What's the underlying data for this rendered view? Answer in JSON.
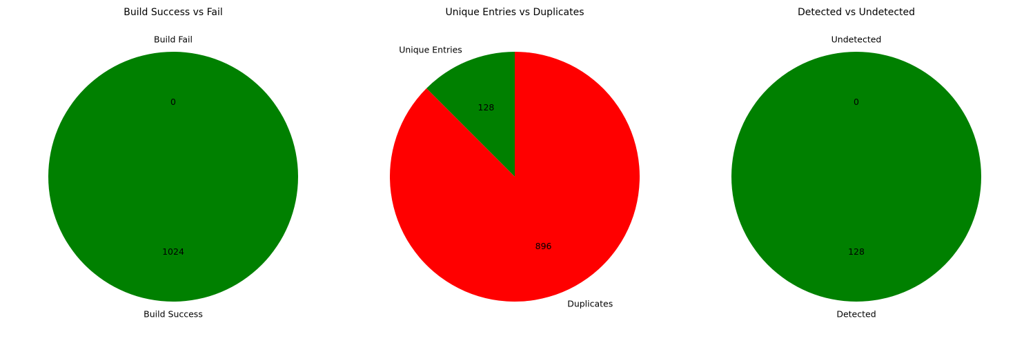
{
  "chart_data": [
    {
      "type": "pie",
      "title": "Build Success vs Fail",
      "slices": [
        {
          "label": "Build Success",
          "value": 1024,
          "color": "#008000"
        },
        {
          "label": "Build Fail",
          "value": 0,
          "color": "#ff0000"
        }
      ],
      "start_angle": 90,
      "direction": "counterclockwise"
    },
    {
      "type": "pie",
      "title": "Unique Entries vs Duplicates",
      "slices": [
        {
          "label": "Unique Entries",
          "value": 128,
          "color": "#008000"
        },
        {
          "label": "Duplicates",
          "value": 896,
          "color": "#ff0000"
        }
      ],
      "start_angle": 90,
      "direction": "counterclockwise"
    },
    {
      "type": "pie",
      "title": "Detected vs Undetected",
      "slices": [
        {
          "label": "Detected",
          "value": 128,
          "color": "#008000"
        },
        {
          "label": "Undetected",
          "value": 0,
          "color": "#ff0000"
        }
      ],
      "start_angle": 90,
      "direction": "counterclockwise"
    }
  ]
}
